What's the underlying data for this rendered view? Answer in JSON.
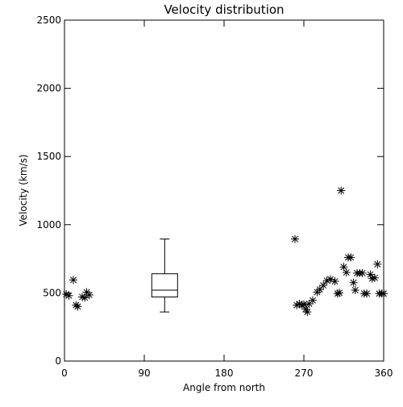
{
  "chart_data": {
    "type": "scatter",
    "title": "Velocity distribution",
    "xlabel": "Angle from north",
    "ylabel": "Velocity (km/s)",
    "xlim": [
      0,
      360
    ],
    "ylim": [
      0,
      2500
    ],
    "xticks": [
      0,
      90,
      180,
      270,
      360
    ],
    "yticks": [
      0,
      500,
      1000,
      1500,
      2000,
      2500
    ],
    "grid": false,
    "marker": "asterisk",
    "colors": {
      "foreground": "#000000",
      "background": "#ffffff"
    },
    "series": [
      {
        "points": [
          [
            2,
            490
          ],
          [
            5,
            480
          ],
          [
            10,
            595
          ],
          [
            13,
            410
          ],
          [
            15,
            400
          ],
          [
            20,
            470
          ],
          [
            23,
            465
          ],
          [
            25,
            505
          ],
          [
            28,
            485
          ],
          [
            260,
            895
          ],
          [
            262,
            410
          ],
          [
            265,
            420
          ],
          [
            268,
            410
          ],
          [
            270,
            415
          ],
          [
            272,
            380
          ],
          [
            274,
            360
          ],
          [
            276,
            420
          ],
          [
            280,
            445
          ],
          [
            285,
            505
          ],
          [
            288,
            525
          ],
          [
            292,
            555
          ],
          [
            296,
            590
          ],
          [
            300,
            600
          ],
          [
            305,
            585
          ],
          [
            308,
            495
          ],
          [
            310,
            500
          ],
          [
            312,
            1250
          ],
          [
            315,
            690
          ],
          [
            318,
            650
          ],
          [
            320,
            760
          ],
          [
            323,
            760
          ],
          [
            326,
            575
          ],
          [
            328,
            520
          ],
          [
            330,
            645
          ],
          [
            333,
            645
          ],
          [
            336,
            645
          ],
          [
            338,
            495
          ],
          [
            341,
            495
          ],
          [
            345,
            635
          ],
          [
            347,
            605
          ],
          [
            350,
            610
          ],
          [
            353,
            710
          ],
          [
            355,
            495
          ],
          [
            358,
            495
          ],
          [
            360,
            495
          ]
        ]
      }
    ],
    "boxplot": {
      "x": 113,
      "min": 360,
      "q1": 470,
      "median": 520,
      "q3": 640,
      "max": 895
    }
  }
}
